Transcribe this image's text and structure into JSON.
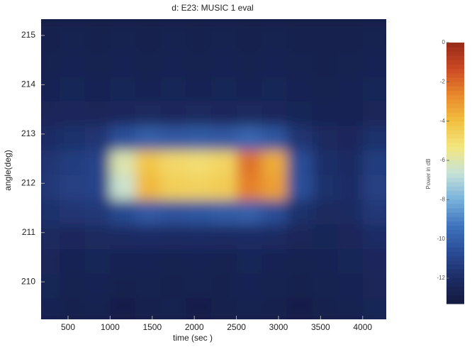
{
  "chart_data": {
    "type": "heatmap",
    "title": "d: E23: MUSIC 1 eval",
    "x_label": "time (sec )",
    "y_label": "angle(deg)",
    "colorbar_label": "Power in dB",
    "x": [
      300,
      600,
      900,
      1200,
      1500,
      1800,
      2100,
      2400,
      2700,
      3000,
      3300,
      3600,
      3900,
      4200
    ],
    "y": [
      209.5,
      210.0,
      210.5,
      211.0,
      211.5,
      212.0,
      212.5,
      213.0,
      213.5,
      214.0,
      214.5,
      215.0
    ],
    "z": [
      [
        -12.6,
        -12.8,
        -12.7,
        -12.9,
        -12.8,
        -12.7,
        -12.9,
        -12.8,
        -12.7,
        -12.8,
        -12.9,
        -12.8,
        -12.7,
        -12.5
      ],
      [
        -12.5,
        -12.7,
        -12.6,
        -12.8,
        -12.7,
        -12.8,
        -12.7,
        -12.8,
        -12.6,
        -12.7,
        -12.8,
        -12.7,
        -12.6,
        -12.4
      ],
      [
        -12.4,
        -12.6,
        -12.5,
        -12.6,
        -12.6,
        -12.7,
        -12.6,
        -12.7,
        -12.5,
        -12.6,
        -12.7,
        -12.6,
        -12.5,
        -12.3
      ],
      [
        -12.2,
        -12.3,
        -12.2,
        -12.1,
        -12.0,
        -12.1,
        -12.0,
        -12.1,
        -12.0,
        -12.1,
        -12.4,
        -12.5,
        -12.4,
        -12.0
      ],
      [
        -11.8,
        -11.6,
        -11.5,
        -10.8,
        -10.2,
        -10.4,
        -10.3,
        -10.1,
        -10.0,
        -10.6,
        -11.8,
        -12.2,
        -12.1,
        -11.5
      ],
      [
        -11.5,
        -11.2,
        -11.0,
        -6.5,
        -3.8,
        -4.5,
        -4.6,
        -4.4,
        -2.5,
        -3.2,
        -10.5,
        -11.8,
        -12.0,
        -11.2
      ],
      [
        -11.6,
        -11.3,
        -11.0,
        -6.0,
        -4.2,
        -4.8,
        -5.0,
        -4.7,
        -2.2,
        -3.5,
        -10.6,
        -11.9,
        -12.1,
        -11.3
      ],
      [
        -12.0,
        -11.8,
        -11.6,
        -10.5,
        -10.0,
        -10.2,
        -10.1,
        -10.2,
        -9.8,
        -10.3,
        -11.6,
        -12.2,
        -12.3,
        -11.8
      ],
      [
        -12.4,
        -12.3,
        -12.4,
        -12.3,
        -12.2,
        -12.3,
        -12.2,
        -12.3,
        -12.2,
        -12.3,
        -12.5,
        -12.6,
        -12.6,
        -12.4
      ],
      [
        -12.6,
        -12.5,
        -12.6,
        -12.5,
        -12.6,
        -12.5,
        -12.6,
        -12.5,
        -12.6,
        -12.5,
        -12.6,
        -12.7,
        -12.6,
        -12.5
      ],
      [
        -12.7,
        -12.6,
        -12.7,
        -12.6,
        -12.7,
        -12.6,
        -12.7,
        -12.6,
        -12.7,
        -12.6,
        -12.7,
        -12.8,
        -12.7,
        -12.6
      ],
      [
        -12.8,
        -12.7,
        -12.8,
        -12.7,
        -12.8,
        -12.7,
        -12.8,
        -12.7,
        -12.8,
        -12.7,
        -12.8,
        -12.8,
        -12.8,
        -12.7
      ]
    ],
    "xlim": [
      180,
      4280
    ],
    "ylim": [
      209.24,
      215.33
    ],
    "xticks": [
      500,
      1000,
      1500,
      2000,
      2500,
      3000,
      3500,
      4000
    ],
    "yticks": [
      210,
      211,
      212,
      213,
      214,
      215
    ],
    "clim": [
      -13.3,
      0
    ],
    "cticks": [
      0,
      -2,
      -4,
      -6,
      -8,
      -10,
      -12
    ],
    "colormap": [
      "#141a3e",
      "#1d2c66",
      "#2a4c96",
      "#3f74bc",
      "#79b2dc",
      "#c5e2d8",
      "#f3e680",
      "#f2c040",
      "#e8882c",
      "#cc4a24",
      "#962a1a"
    ]
  }
}
